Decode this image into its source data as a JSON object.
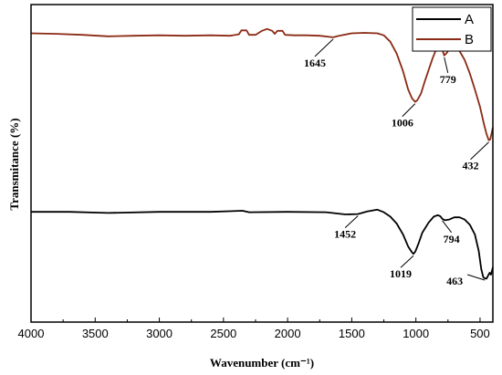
{
  "chart_data": {
    "type": "line",
    "xlabel": "Wavenumber (cm⁻¹)",
    "ylabel": "Transmitance (%)",
    "xlim": [
      4000,
      400
    ],
    "x_reversed": true,
    "x_ticks": [
      4000,
      3500,
      3000,
      2500,
      2000,
      1500,
      1000,
      500
    ],
    "y_ticks_shown": false,
    "grid": false,
    "legend": "top-right",
    "series": [
      {
        "name": "A",
        "color": "#000000",
        "points": [
          [
            4000,
            0.3
          ],
          [
            3700,
            0.3
          ],
          [
            3400,
            0.6
          ],
          [
            3000,
            0.3
          ],
          [
            2600,
            0.3
          ],
          [
            2350,
            0.0
          ],
          [
            2300,
            0.4
          ],
          [
            2000,
            0.3
          ],
          [
            1700,
            0.4
          ],
          [
            1550,
            1.0
          ],
          [
            1452,
            0.9
          ],
          [
            1380,
            0.2
          ],
          [
            1300,
            -0.3
          ],
          [
            1250,
            0.4
          ],
          [
            1200,
            1.6
          ],
          [
            1150,
            3.5
          ],
          [
            1100,
            6.5
          ],
          [
            1060,
            9.8
          ],
          [
            1030,
            11.4
          ],
          [
            1019,
            11.8
          ],
          [
            1005,
            11.2
          ],
          [
            980,
            9.0
          ],
          [
            950,
            6.0
          ],
          [
            900,
            3.2
          ],
          [
            860,
            1.6
          ],
          [
            830,
            1.2
          ],
          [
            810,
            1.5
          ],
          [
            794,
            2.2
          ],
          [
            775,
            2.6
          ],
          [
            740,
            2.4
          ],
          [
            700,
            1.8
          ],
          [
            660,
            1.8
          ],
          [
            620,
            2.4
          ],
          [
            580,
            3.8
          ],
          [
            540,
            6.5
          ],
          [
            510,
            11.0
          ],
          [
            490,
            16.0
          ],
          [
            475,
            18.2
          ],
          [
            463,
            18.5
          ],
          [
            450,
            18.6
          ],
          [
            438,
            17.8
          ],
          [
            425,
            17.0
          ],
          [
            415,
            17.5
          ],
          [
            400,
            15.5
          ]
        ]
      },
      {
        "name": "B",
        "color": "#8b2a14",
        "points": [
          [
            4000,
            0.1
          ],
          [
            3800,
            0.2
          ],
          [
            3600,
            0.4
          ],
          [
            3400,
            0.7
          ],
          [
            3200,
            0.6
          ],
          [
            3000,
            0.5
          ],
          [
            2800,
            0.6
          ],
          [
            2600,
            0.5
          ],
          [
            2450,
            0.6
          ],
          [
            2380,
            0.3
          ],
          [
            2360,
            -0.5
          ],
          [
            2320,
            -0.5
          ],
          [
            2300,
            0.4
          ],
          [
            2250,
            0.4
          ],
          [
            2200,
            -0.4
          ],
          [
            2160,
            -0.8
          ],
          [
            2120,
            -0.4
          ],
          [
            2100,
            0.2
          ],
          [
            2080,
            -0.4
          ],
          [
            2040,
            -0.4
          ],
          [
            2020,
            0.4
          ],
          [
            1950,
            0.5
          ],
          [
            1850,
            0.5
          ],
          [
            1750,
            0.6
          ],
          [
            1645,
            0.9
          ],
          [
            1600,
            0.6
          ],
          [
            1500,
            0.1
          ],
          [
            1400,
            0.0
          ],
          [
            1300,
            0.1
          ],
          [
            1250,
            0.5
          ],
          [
            1200,
            1.8
          ],
          [
            1150,
            4.2
          ],
          [
            1100,
            7.8
          ],
          [
            1060,
            11.5
          ],
          [
            1030,
            13.3
          ],
          [
            1006,
            14.0
          ],
          [
            990,
            13.7
          ],
          [
            960,
            12.3
          ],
          [
            930,
            9.8
          ],
          [
            900,
            7.5
          ],
          [
            870,
            5.2
          ],
          [
            840,
            3.2
          ],
          [
            820,
            2.4
          ],
          [
            800,
            2.9
          ],
          [
            779,
            4.6
          ],
          [
            760,
            4.1
          ],
          [
            740,
            3.3
          ],
          [
            700,
            3.1
          ],
          [
            660,
            3.7
          ],
          [
            620,
            5.5
          ],
          [
            580,
            8.2
          ],
          [
            540,
            11.5
          ],
          [
            500,
            15.0
          ],
          [
            470,
            18.5
          ],
          [
            450,
            20.5
          ],
          [
            432,
            21.8
          ],
          [
            420,
            21.6
          ],
          [
            410,
            20.4
          ],
          [
            400,
            19.2
          ]
        ]
      }
    ],
    "annotations": [
      {
        "label": "1645",
        "series": "B",
        "x": 1645
      },
      {
        "label": "1006",
        "series": "B",
        "x": 1006
      },
      {
        "label": "779",
        "series": "B",
        "x": 779
      },
      {
        "label": "432",
        "series": "B",
        "x": 432
      },
      {
        "label": "1452",
        "series": "A",
        "x": 1452
      },
      {
        "label": "1019",
        "series": "A",
        "x": 1019
      },
      {
        "label": "794",
        "series": "A",
        "x": 794
      },
      {
        "label": "463",
        "series": "A",
        "x": 463
      }
    ]
  }
}
